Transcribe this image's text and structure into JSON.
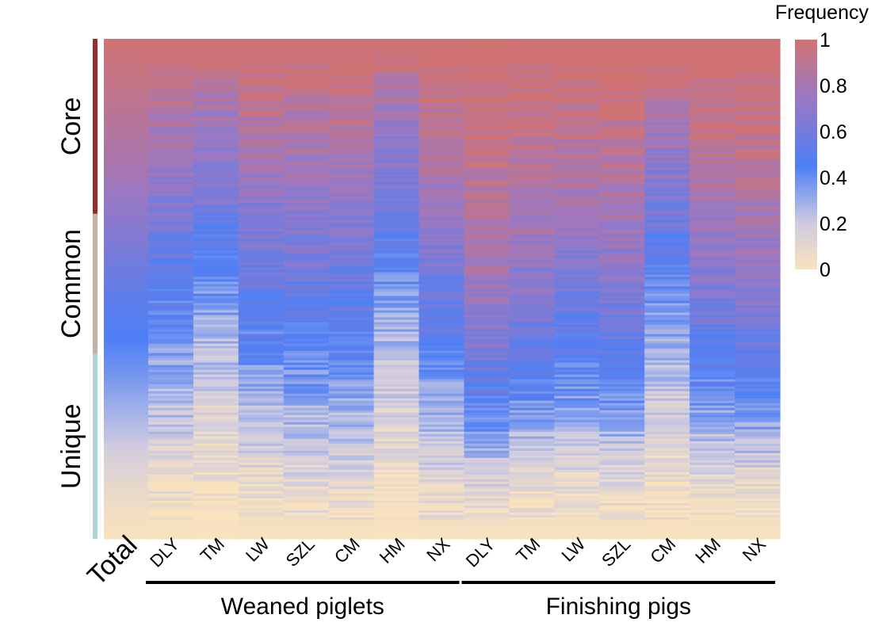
{
  "chart_data": {
    "type": "heatmap",
    "columns": [
      "Total",
      "DLY",
      "TM",
      "LW",
      "SZL",
      "CM",
      "HM",
      "NX",
      "DLY",
      "TM",
      "LW",
      "SZL",
      "CM",
      "HM",
      "NX"
    ],
    "groups": [
      {
        "label": "Weaned piglets",
        "columns": [
          1,
          2,
          3,
          4,
          5,
          6,
          7
        ]
      },
      {
        "label": "Finishing pigs",
        "columns": [
          8,
          9,
          10,
          11,
          12,
          13,
          14
        ]
      }
    ],
    "categories": [
      {
        "label": "Core",
        "color": "#9b2a2a",
        "range": [
          0.0,
          0.35
        ]
      },
      {
        "label": "Common",
        "color": "#c4b3a3",
        "range": [
          0.35,
          0.63
        ]
      },
      {
        "label": "Unique",
        "color": "#a9d6d4",
        "range": [
          0.63,
          1.0
        ]
      }
    ],
    "column_profiles": [
      [
        1,
        0.95,
        0.9,
        0.85,
        0.8,
        0.72,
        0.65,
        0.57,
        0.5,
        0.45,
        0.38,
        0.3,
        0.22,
        0.12,
        0.05,
        0.0
      ],
      [
        1,
        0.97,
        0.84,
        0.78,
        0.72,
        0.64,
        0.58,
        0.52,
        0.45,
        0.38,
        0.3,
        0.24,
        0.17,
        0.1,
        0.04,
        0.0
      ],
      [
        1,
        0.96,
        0.8,
        0.74,
        0.66,
        0.58,
        0.5,
        0.42,
        0.35,
        0.28,
        0.22,
        0.16,
        0.1,
        0.06,
        0.02,
        0.0
      ],
      [
        1,
        0.97,
        0.88,
        0.82,
        0.76,
        0.68,
        0.62,
        0.56,
        0.5,
        0.44,
        0.36,
        0.28,
        0.2,
        0.12,
        0.05,
        0.0
      ],
      [
        1,
        0.97,
        0.9,
        0.84,
        0.78,
        0.7,
        0.64,
        0.58,
        0.52,
        0.46,
        0.38,
        0.3,
        0.22,
        0.14,
        0.06,
        0.0
      ],
      [
        1,
        0.97,
        0.9,
        0.84,
        0.76,
        0.7,
        0.64,
        0.58,
        0.52,
        0.46,
        0.38,
        0.3,
        0.22,
        0.14,
        0.06,
        0.0
      ],
      [
        1,
        0.93,
        0.78,
        0.72,
        0.66,
        0.58,
        0.5,
        0.42,
        0.34,
        0.28,
        0.22,
        0.16,
        0.1,
        0.06,
        0.02,
        0.0
      ],
      [
        1,
        0.98,
        0.93,
        0.88,
        0.82,
        0.74,
        0.68,
        0.6,
        0.54,
        0.46,
        0.38,
        0.3,
        0.22,
        0.14,
        0.06,
        0.0
      ],
      [
        1,
        1,
        0.98,
        0.95,
        0.9,
        0.86,
        0.82,
        0.78,
        0.72,
        0.64,
        0.56,
        0.46,
        0.32,
        0.18,
        0.07,
        0.0
      ],
      [
        1,
        0.99,
        0.96,
        0.92,
        0.87,
        0.82,
        0.76,
        0.7,
        0.64,
        0.57,
        0.48,
        0.38,
        0.26,
        0.14,
        0.05,
        0.0
      ],
      [
        1,
        0.99,
        0.95,
        0.9,
        0.84,
        0.78,
        0.72,
        0.66,
        0.58,
        0.5,
        0.42,
        0.34,
        0.22,
        0.12,
        0.05,
        0.0
      ],
      [
        1,
        0.99,
        0.96,
        0.91,
        0.86,
        0.8,
        0.74,
        0.68,
        0.61,
        0.54,
        0.46,
        0.38,
        0.26,
        0.14,
        0.06,
        0.0
      ],
      [
        1,
        0.98,
        0.83,
        0.76,
        0.68,
        0.6,
        0.52,
        0.44,
        0.37,
        0.3,
        0.24,
        0.18,
        0.12,
        0.07,
        0.03,
        0.0
      ],
      [
        1,
        0.99,
        0.95,
        0.9,
        0.84,
        0.78,
        0.72,
        0.66,
        0.6,
        0.52,
        0.44,
        0.36,
        0.25,
        0.13,
        0.05,
        0.0
      ],
      [
        1,
        0.99,
        0.96,
        0.92,
        0.87,
        0.82,
        0.76,
        0.7,
        0.64,
        0.56,
        0.48,
        0.4,
        0.28,
        0.15,
        0.06,
        0.0
      ]
    ],
    "colorbar": {
      "label": "Frequency",
      "ticks": [
        "1",
        "0.8",
        "0.6",
        "0.4",
        "0.2",
        "0"
      ],
      "scale": [
        {
          "value": 0,
          "color": "#f9e2bd"
        },
        {
          "value": 0.2,
          "color": "#cfcbe0"
        },
        {
          "value": 0.45,
          "color": "#4e7ff5"
        },
        {
          "value": 0.75,
          "color": "#9b78c2"
        },
        {
          "value": 1,
          "color": "#d27373"
        }
      ]
    }
  }
}
